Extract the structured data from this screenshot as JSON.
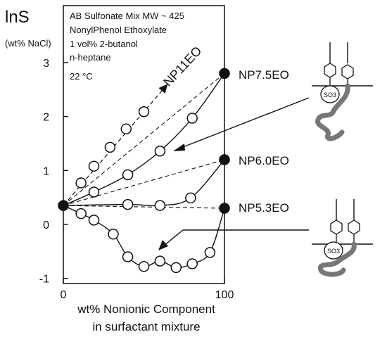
{
  "chart_data": {
    "type": "line",
    "ylabel": "lnS",
    "ylabel_unit": "(wt% NaCl)",
    "xlabel_line1": "wt% Nonionic Component",
    "xlabel_line2": "in surfactant mixture",
    "xlim": [
      0,
      100
    ],
    "ylim": [
      -1.1,
      3.3
    ],
    "x_ticks": [
      0,
      100
    ],
    "y_ticks": [
      -1,
      0,
      1,
      2,
      3
    ],
    "grid": false,
    "annotation_box": [
      "AB Sulfonate Mix MW ~ 425",
      "NonylPhenol Ethoxylate",
      "1 vol% 2-butanol",
      "n-heptane",
      "22 °C"
    ],
    "series": [
      {
        "name": "NP11EO",
        "style": "dashed-arrow",
        "points": [
          [
            0,
            0.35
          ],
          [
            11,
            0.77
          ],
          [
            19,
            1.08
          ],
          [
            29,
            1.43
          ],
          [
            39,
            1.77
          ],
          [
            50,
            2.09
          ]
        ]
      },
      {
        "name": "NP7.5EO",
        "style": "solid",
        "points": [
          [
            0,
            0.35
          ],
          [
            19,
            0.6
          ],
          [
            40,
            0.92
          ],
          [
            60,
            1.36
          ],
          [
            80,
            1.97
          ],
          [
            100,
            2.8
          ]
        ],
        "end_filled": true
      },
      {
        "name": "NP6.0EO",
        "style": "solid",
        "points": [
          [
            0,
            0.35
          ],
          [
            40,
            0.37
          ],
          [
            60,
            0.35
          ],
          [
            79,
            0.49
          ],
          [
            100,
            1.2
          ]
        ],
        "end_filled": true
      },
      {
        "name": "NP5.3EO",
        "style": "solid",
        "points": [
          [
            0,
            0.35
          ],
          [
            11,
            0.2
          ],
          [
            19,
            0.08
          ],
          [
            31,
            -0.18
          ],
          [
            40,
            -0.6
          ],
          [
            50,
            -0.78
          ],
          [
            60,
            -0.68
          ],
          [
            70,
            -0.8
          ],
          [
            80,
            -0.73
          ],
          [
            91,
            -0.52
          ],
          [
            100,
            0.3
          ]
        ],
        "end_filled": true
      }
    ],
    "reference_lines": [
      {
        "from": [
          0,
          0.35
        ],
        "to": [
          100,
          2.8
        ],
        "style": "dashed"
      },
      {
        "from": [
          0,
          0.35
        ],
        "to": [
          100,
          1.2
        ],
        "style": "dashed"
      },
      {
        "from": [
          0,
          0.35
        ],
        "to": [
          100,
          0.3
        ],
        "style": "dashed"
      }
    ],
    "labels": {
      "np11": "NP11EO",
      "np75": "NP7.5EO",
      "np60": "NP6.0EO",
      "np53": "NP5.3EO"
    }
  }
}
